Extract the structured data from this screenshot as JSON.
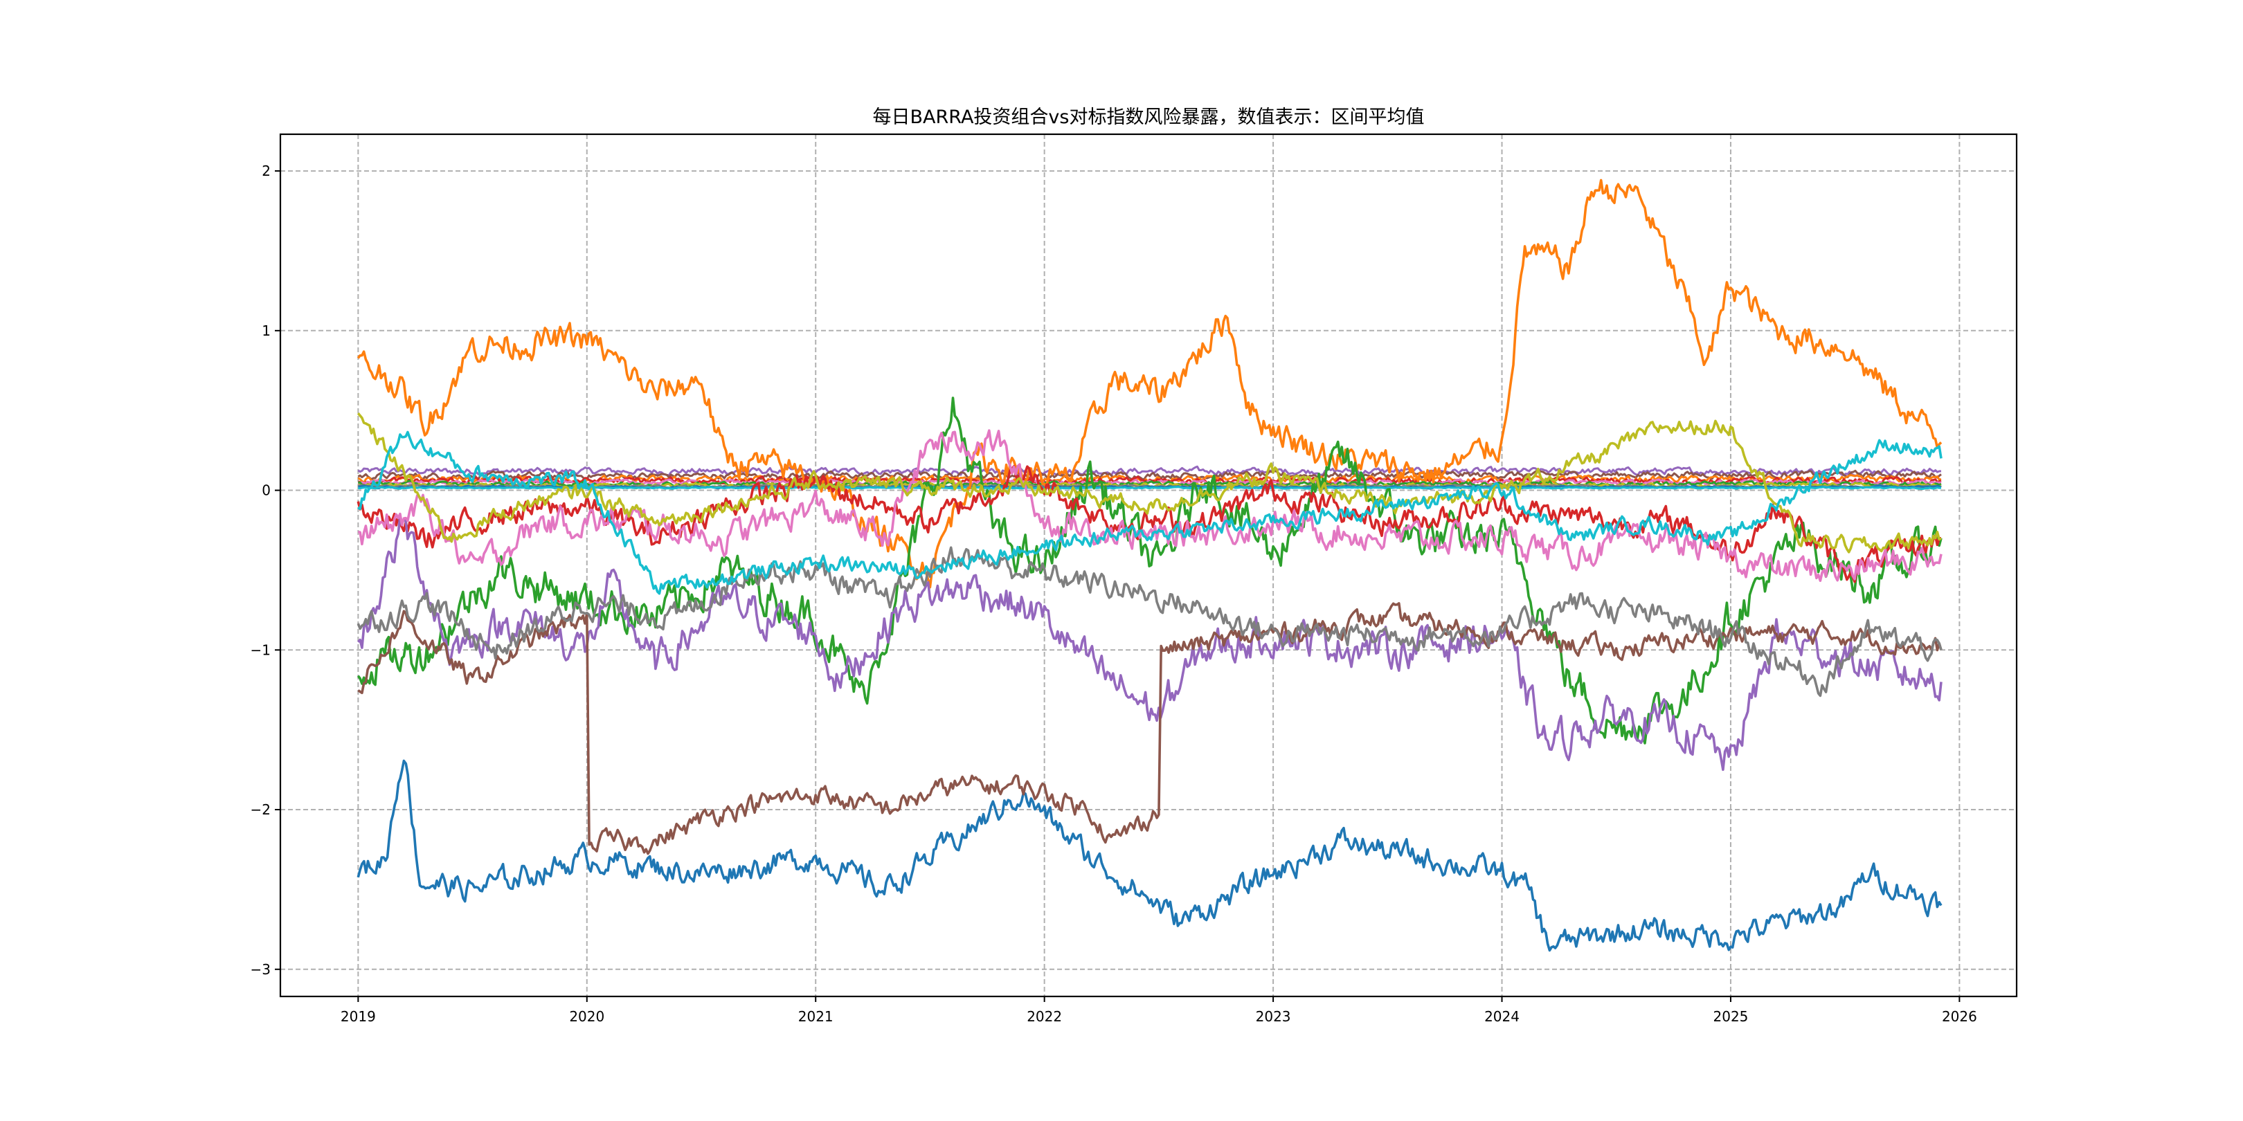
{
  "chart_data": {
    "type": "line",
    "title": "每日BARRA投资组合vs对标指数风险暴露，数值表示：区间平均值",
    "xlabel": "",
    "ylabel": "",
    "xlim": [
      2018.66,
      2026.25
    ],
    "ylim": [
      -3.17,
      2.23
    ],
    "x_ticks": [
      "2019",
      "2020",
      "2021",
      "2022",
      "2023",
      "2024",
      "2025",
      "2026"
    ],
    "x_tick_values": [
      2019,
      2020,
      2021,
      2022,
      2023,
      2024,
      2025,
      2026
    ],
    "y_ticks": [
      "2",
      "1",
      "0",
      "−1",
      "−2",
      "−3"
    ],
    "y_tick_values": [
      2,
      1,
      0,
      -1,
      -2,
      -3
    ],
    "grid": true,
    "legend": "none",
    "series": [
      {
        "name": "s0",
        "color": "#1f77b4",
        "noise": 0.06,
        "x": [
          2019,
          2019.12,
          2019.2,
          2019.27,
          2019.5,
          2020,
          2020.5,
          2021,
          2021.3,
          2021.7,
          2021.9,
          2022.2,
          2022.6,
          2023,
          2023.3,
          2024,
          2024.12,
          2024.2,
          2024.6,
          2025,
          2025.5,
          2025.6,
          2025.92
        ],
        "y": [
          -2.4,
          -2.3,
          -1.6,
          -2.45,
          -2.5,
          -2.3,
          -2.4,
          -2.3,
          -2.5,
          -2.1,
          -1.9,
          -2.3,
          -2.7,
          -2.4,
          -2.2,
          -2.4,
          -2.5,
          -2.85,
          -2.75,
          -2.8,
          -2.6,
          -2.4,
          -2.6
        ]
      },
      {
        "name": "s1",
        "color": "#ff7f0e",
        "noise": 0.07,
        "x": [
          2019,
          2019.15,
          2019.3,
          2019.5,
          2020,
          2020.3,
          2020.5,
          2020.6,
          2021,
          2021.3,
          2021.5,
          2021.7,
          2022.1,
          2022.3,
          2022.5,
          2022.7,
          2022.8,
          2022.9,
          2023.1,
          2023.3,
          2023.7,
          2024,
          2024.1,
          2024.3,
          2024.4,
          2024.6,
          2024.8,
          2024.9,
          2025,
          2025.2,
          2025.5,
          2025.7,
          2025.92
        ],
        "y": [
          0.8,
          0.7,
          0.4,
          0.9,
          0.95,
          0.6,
          0.7,
          0.2,
          0.1,
          -0.3,
          -0.5,
          0.2,
          0.05,
          0.7,
          0.6,
          0.9,
          1.1,
          0.5,
          0.3,
          0.2,
          0.1,
          0.3,
          1.5,
          1.4,
          1.9,
          1.85,
          1.2,
          0.8,
          1.3,
          1.0,
          0.9,
          0.6,
          0.3
        ]
      },
      {
        "name": "s2",
        "color": "#2ca02c",
        "noise": 0.1,
        "x": [
          2019,
          2019.3,
          2019.6,
          2020,
          2020.3,
          2020.6,
          2021,
          2021.2,
          2021.4,
          2021.6,
          2021.8,
          2022,
          2022.2,
          2022.5,
          2022.7,
          2023,
          2023.3,
          2023.6,
          2024,
          2024.1,
          2024.3,
          2024.5,
          2024.8,
          2025,
          2025.3,
          2025.6,
          2025.92
        ],
        "y": [
          -1.1,
          -1.0,
          -0.5,
          -0.7,
          -0.8,
          -0.5,
          -0.8,
          -1.3,
          -0.5,
          0.5,
          -0.3,
          -0.5,
          0.1,
          -0.5,
          0.1,
          -0.4,
          0.2,
          -0.3,
          -0.3,
          -0.5,
          -1.2,
          -1.5,
          -1.3,
          -0.8,
          -0.3,
          -0.6,
          -0.3
        ]
      },
      {
        "name": "s3",
        "color": "#d62728",
        "noise": 0.06,
        "x": [
          2019,
          2019.3,
          2019.6,
          2020,
          2020.3,
          2020.6,
          2021,
          2021.5,
          2021.9,
          2022.3,
          2022.7,
          2023,
          2023.5,
          2024,
          2024.5,
          2024.8,
          2025,
          2025.2,
          2025.5,
          2025.92
        ],
        "y": [
          -0.1,
          -0.3,
          -0.15,
          -0.1,
          -0.3,
          -0.1,
          0.05,
          -0.2,
          0.1,
          -0.2,
          -0.2,
          0.0,
          -0.2,
          -0.1,
          -0.2,
          -0.2,
          -0.4,
          -0.1,
          -0.5,
          -0.3
        ]
      },
      {
        "name": "s4",
        "color": "#9467bd",
        "noise": 0.09,
        "x": [
          2019,
          2019.2,
          2019.4,
          2019.7,
          2020,
          2020.1,
          2020.3,
          2020.6,
          2021,
          2021.1,
          2021.4,
          2021.7,
          2022,
          2022.2,
          2022.5,
          2022.7,
          2023,
          2023.5,
          2024,
          2024.2,
          2024.5,
          2024.8,
          2025,
          2025.2,
          2025.6,
          2025.92
        ],
        "y": [
          -1.0,
          -0.2,
          -1.0,
          -0.8,
          -1.0,
          -0.6,
          -1.1,
          -0.7,
          -0.9,
          -1.2,
          -0.7,
          -0.6,
          -0.8,
          -1.1,
          -1.4,
          -1.0,
          -0.9,
          -1.0,
          -0.9,
          -1.6,
          -1.4,
          -1.5,
          -1.7,
          -0.9,
          -1.1,
          -1.2
        ]
      },
      {
        "name": "s5",
        "color": "#8c564b",
        "noise": 0.05,
        "x": [
          2019,
          2019.2,
          2019.5,
          2019.8,
          2020,
          2020.01,
          2020.3,
          2020.6,
          2021,
          2021.3,
          2021.6,
          2021.9,
          2022.2,
          2022.3,
          2022.5,
          2022.51,
          2023,
          2023.5,
          2024,
          2024.5,
          2025,
          2025.5,
          2025.92
        ],
        "y": [
          -1.25,
          -0.8,
          -1.2,
          -0.9,
          -0.8,
          -2.2,
          -2.2,
          -2.0,
          -1.9,
          -2.0,
          -1.85,
          -1.85,
          -2.0,
          -2.2,
          -2.0,
          -1.0,
          -0.9,
          -0.8,
          -0.9,
          -1.0,
          -0.9,
          -0.9,
          -1.0
        ]
      },
      {
        "name": "s6",
        "color": "#e377c2",
        "noise": 0.07,
        "x": [
          2019,
          2019.3,
          2019.5,
          2019.8,
          2020.2,
          2020.6,
          2021,
          2021.3,
          2021.5,
          2021.8,
          2022,
          2022.5,
          2023,
          2023.5,
          2024,
          2024.3,
          2024.7,
          2025.2,
          2025.5,
          2025.92
        ],
        "y": [
          -0.3,
          -0.1,
          -0.5,
          -0.2,
          -0.2,
          -0.3,
          -0.1,
          -0.3,
          0.3,
          0.3,
          -0.2,
          -0.3,
          -0.2,
          -0.3,
          -0.3,
          -0.4,
          -0.3,
          -0.5,
          -0.5,
          -0.4
        ]
      },
      {
        "name": "s7",
        "color": "#7f7f7f",
        "noise": 0.06,
        "x": [
          2019,
          2019.3,
          2019.6,
          2020,
          2020.4,
          2020.7,
          2021,
          2021.3,
          2021.6,
          2021.9,
          2022.3,
          2022.6,
          2023,
          2023.5,
          2024,
          2024.3,
          2024.7,
          2025,
          2025.4,
          2025.6,
          2025.92
        ],
        "y": [
          -0.85,
          -0.7,
          -1.0,
          -0.7,
          -0.8,
          -0.5,
          -0.5,
          -0.7,
          -0.4,
          -0.5,
          -0.6,
          -0.7,
          -0.9,
          -0.9,
          -0.9,
          -0.7,
          -0.8,
          -0.9,
          -1.2,
          -0.9,
          -1.0
        ]
      },
      {
        "name": "s8",
        "color": "#bcbd22",
        "noise": 0.04,
        "x": [
          2019,
          2019.1,
          2019.4,
          2019.7,
          2020,
          2020.3,
          2021,
          2022,
          2022.5,
          2023,
          2023.5,
          2024,
          2024.4,
          2024.7,
          2025,
          2025.3,
          2025.6,
          2025.92
        ],
        "y": [
          0.45,
          0.3,
          -0.3,
          -0.1,
          0.0,
          -0.2,
          0.05,
          0.0,
          -0.1,
          0.1,
          -0.1,
          0.0,
          0.2,
          0.4,
          0.4,
          -0.3,
          -0.35,
          -0.3
        ]
      },
      {
        "name": "s9",
        "color": "#17becf",
        "noise": 0.04,
        "x": [
          2019,
          2019.2,
          2019.5,
          2020,
          2020.3,
          2020.6,
          2021,
          2021.4,
          2021.8,
          2022.2,
          2022.6,
          2023,
          2023.5,
          2024,
          2024.3,
          2024.6,
          2025,
          2025.4,
          2025.7,
          2025.92
        ],
        "y": [
          -0.1,
          0.35,
          0.1,
          0.05,
          -0.6,
          -0.55,
          -0.45,
          -0.5,
          -0.4,
          -0.3,
          -0.25,
          -0.2,
          -0.1,
          0.0,
          -0.3,
          -0.2,
          -0.3,
          0.1,
          0.3,
          0.2
        ]
      },
      {
        "name": "s10",
        "color": "#9467bd",
        "noise": 0.015,
        "x": [
          2019,
          2025.92
        ],
        "y": [
          0.12,
          0.12
        ]
      },
      {
        "name": "s11",
        "color": "#8c564b",
        "noise": 0.015,
        "x": [
          2019,
          2025.92
        ],
        "y": [
          0.09,
          0.1
        ]
      },
      {
        "name": "s12",
        "color": "#ff7f0e",
        "noise": 0.015,
        "x": [
          2019,
          2025.92
        ],
        "y": [
          0.07,
          0.07
        ]
      },
      {
        "name": "s13",
        "color": "#d62728",
        "noise": 0.015,
        "x": [
          2019,
          2025.92
        ],
        "y": [
          0.06,
          0.06
        ]
      },
      {
        "name": "s14",
        "color": "#e377c2",
        "noise": 0.01,
        "x": [
          2019,
          2025.92
        ],
        "y": [
          0.05,
          0.05
        ]
      },
      {
        "name": "s15",
        "color": "#2ca02c",
        "noise": 0.01,
        "x": [
          2019,
          2025.92
        ],
        "y": [
          0.04,
          0.04
        ]
      },
      {
        "name": "s16",
        "color": "#bcbd22",
        "noise": 0.01,
        "x": [
          2019,
          2025.92
        ],
        "y": [
          0.03,
          0.03
        ]
      },
      {
        "name": "s17",
        "color": "#7f7f7f",
        "noise": 0.005,
        "x": [
          2019,
          2025.92
        ],
        "y": [
          0.025,
          0.025
        ]
      },
      {
        "name": "s18",
        "color": "#1f77b4",
        "noise": 0.005,
        "x": [
          2019,
          2025.92
        ],
        "y": [
          0.02,
          0.02
        ]
      },
      {
        "name": "s19",
        "color": "#17becf",
        "noise": 0.003,
        "x": [
          2019,
          2025.92
        ],
        "y": [
          0.015,
          0.015
        ]
      }
    ]
  }
}
